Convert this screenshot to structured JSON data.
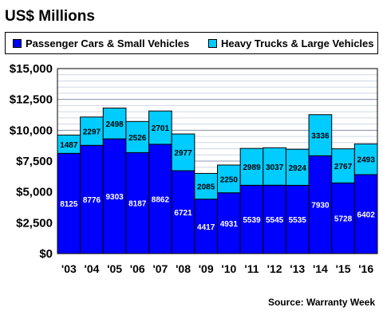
{
  "title": "US$ Millions",
  "source": "Source: Warranty Week",
  "colors": {
    "passenger": "#0000ff",
    "heavy": "#00ccff",
    "plot_bg": "#ffffff",
    "grid": "#cfd6e6"
  },
  "chart_data": {
    "type": "bar",
    "stacked": true,
    "categories": [
      "'03",
      "'04",
      "'05",
      "'06",
      "'07",
      "'08",
      "'09",
      "'10",
      "'11",
      "'12",
      "'13",
      "'14",
      "'15",
      "'16"
    ],
    "series": [
      {
        "name": "Passenger Cars & Small Vehicles",
        "color": "#0000ff",
        "values": [
          8125,
          8776,
          9303,
          8187,
          8862,
          6721,
          4417,
          4931,
          5539,
          5545,
          5535,
          7930,
          5728,
          6402
        ]
      },
      {
        "name": "Heavy Trucks & Large Vehicles",
        "color": "#00ccff",
        "values": [
          1487,
          2297,
          2498,
          2526,
          2701,
          2977,
          2085,
          2250,
          2989,
          3037,
          2924,
          3336,
          2767,
          2493
        ]
      }
    ],
    "y_ticks": [
      "$0",
      "$2,500",
      "$5,000",
      "$7,500",
      "$10,000",
      "$12,500",
      "$15,000"
    ],
    "ylim": [
      0,
      15000
    ],
    "ytick_step": 2500,
    "grid": true,
    "legend_position": "top"
  }
}
